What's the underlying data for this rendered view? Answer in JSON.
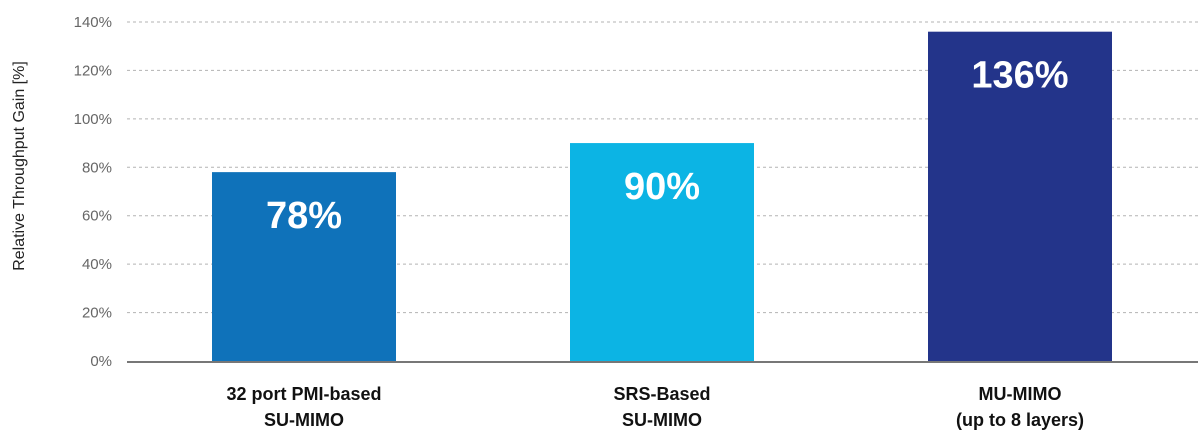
{
  "chart_data": {
    "type": "bar",
    "ylabel": "Relative Throughput Gain [%]",
    "xlabel": "",
    "ylim": [
      0,
      140
    ],
    "yticks": [
      0,
      20,
      40,
      60,
      80,
      100,
      120,
      140
    ],
    "ytick_labels": [
      "0%",
      "20%",
      "40%",
      "60%",
      "80%",
      "100%",
      "120%",
      "140%"
    ],
    "grid": "horizontal dashed",
    "categories": [
      [
        "32 port PMI-based",
        "SU-MIMO"
      ],
      [
        "SRS-Based",
        "SU-MIMO"
      ],
      [
        "MU-MIMO",
        "(up to 8 layers)"
      ]
    ],
    "values": [
      78,
      90,
      136
    ],
    "data_labels": [
      "78%",
      "90%",
      "136%"
    ],
    "bar_colors": [
      "#0F72BA",
      "#0CB4E4",
      "#23348A"
    ]
  }
}
